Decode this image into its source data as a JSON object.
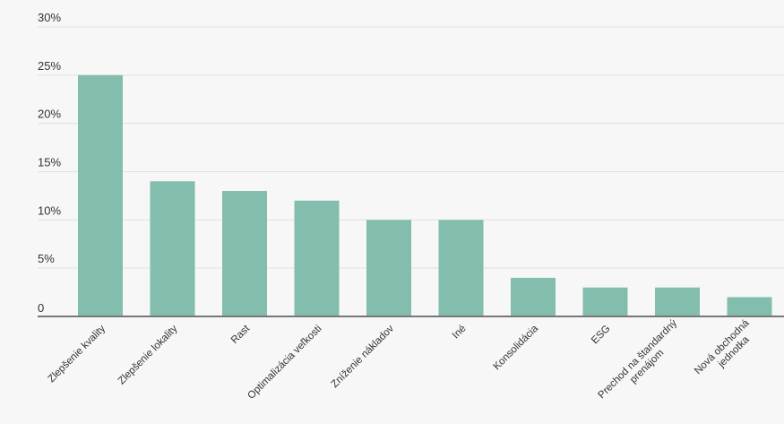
{
  "chart_data": {
    "type": "bar",
    "categories": [
      [
        "Zlepšenie kvality"
      ],
      [
        "Zlepšenie lokality"
      ],
      [
        "Rast"
      ],
      [
        "Optimalizácia veľkosti"
      ],
      [
        "Zníženie nákladov"
      ],
      [
        "Iné"
      ],
      [
        "Konsolidácia"
      ],
      [
        "ESG"
      ],
      [
        "Prechod na štandardný",
        "prenájom"
      ],
      [
        "Nová obchodná",
        "jednotka"
      ]
    ],
    "values": [
      25,
      14,
      13,
      12,
      10,
      10,
      4,
      3,
      3,
      2
    ],
    "yticks": [
      "0",
      "5%",
      "10%",
      "15%",
      "20%",
      "25%",
      "30%"
    ],
    "ylim": [
      0,
      30
    ],
    "title": "",
    "xlabel": "",
    "ylabel": "",
    "grid": true,
    "bar_color": "#82bdad",
    "axis_color": "#777777"
  }
}
